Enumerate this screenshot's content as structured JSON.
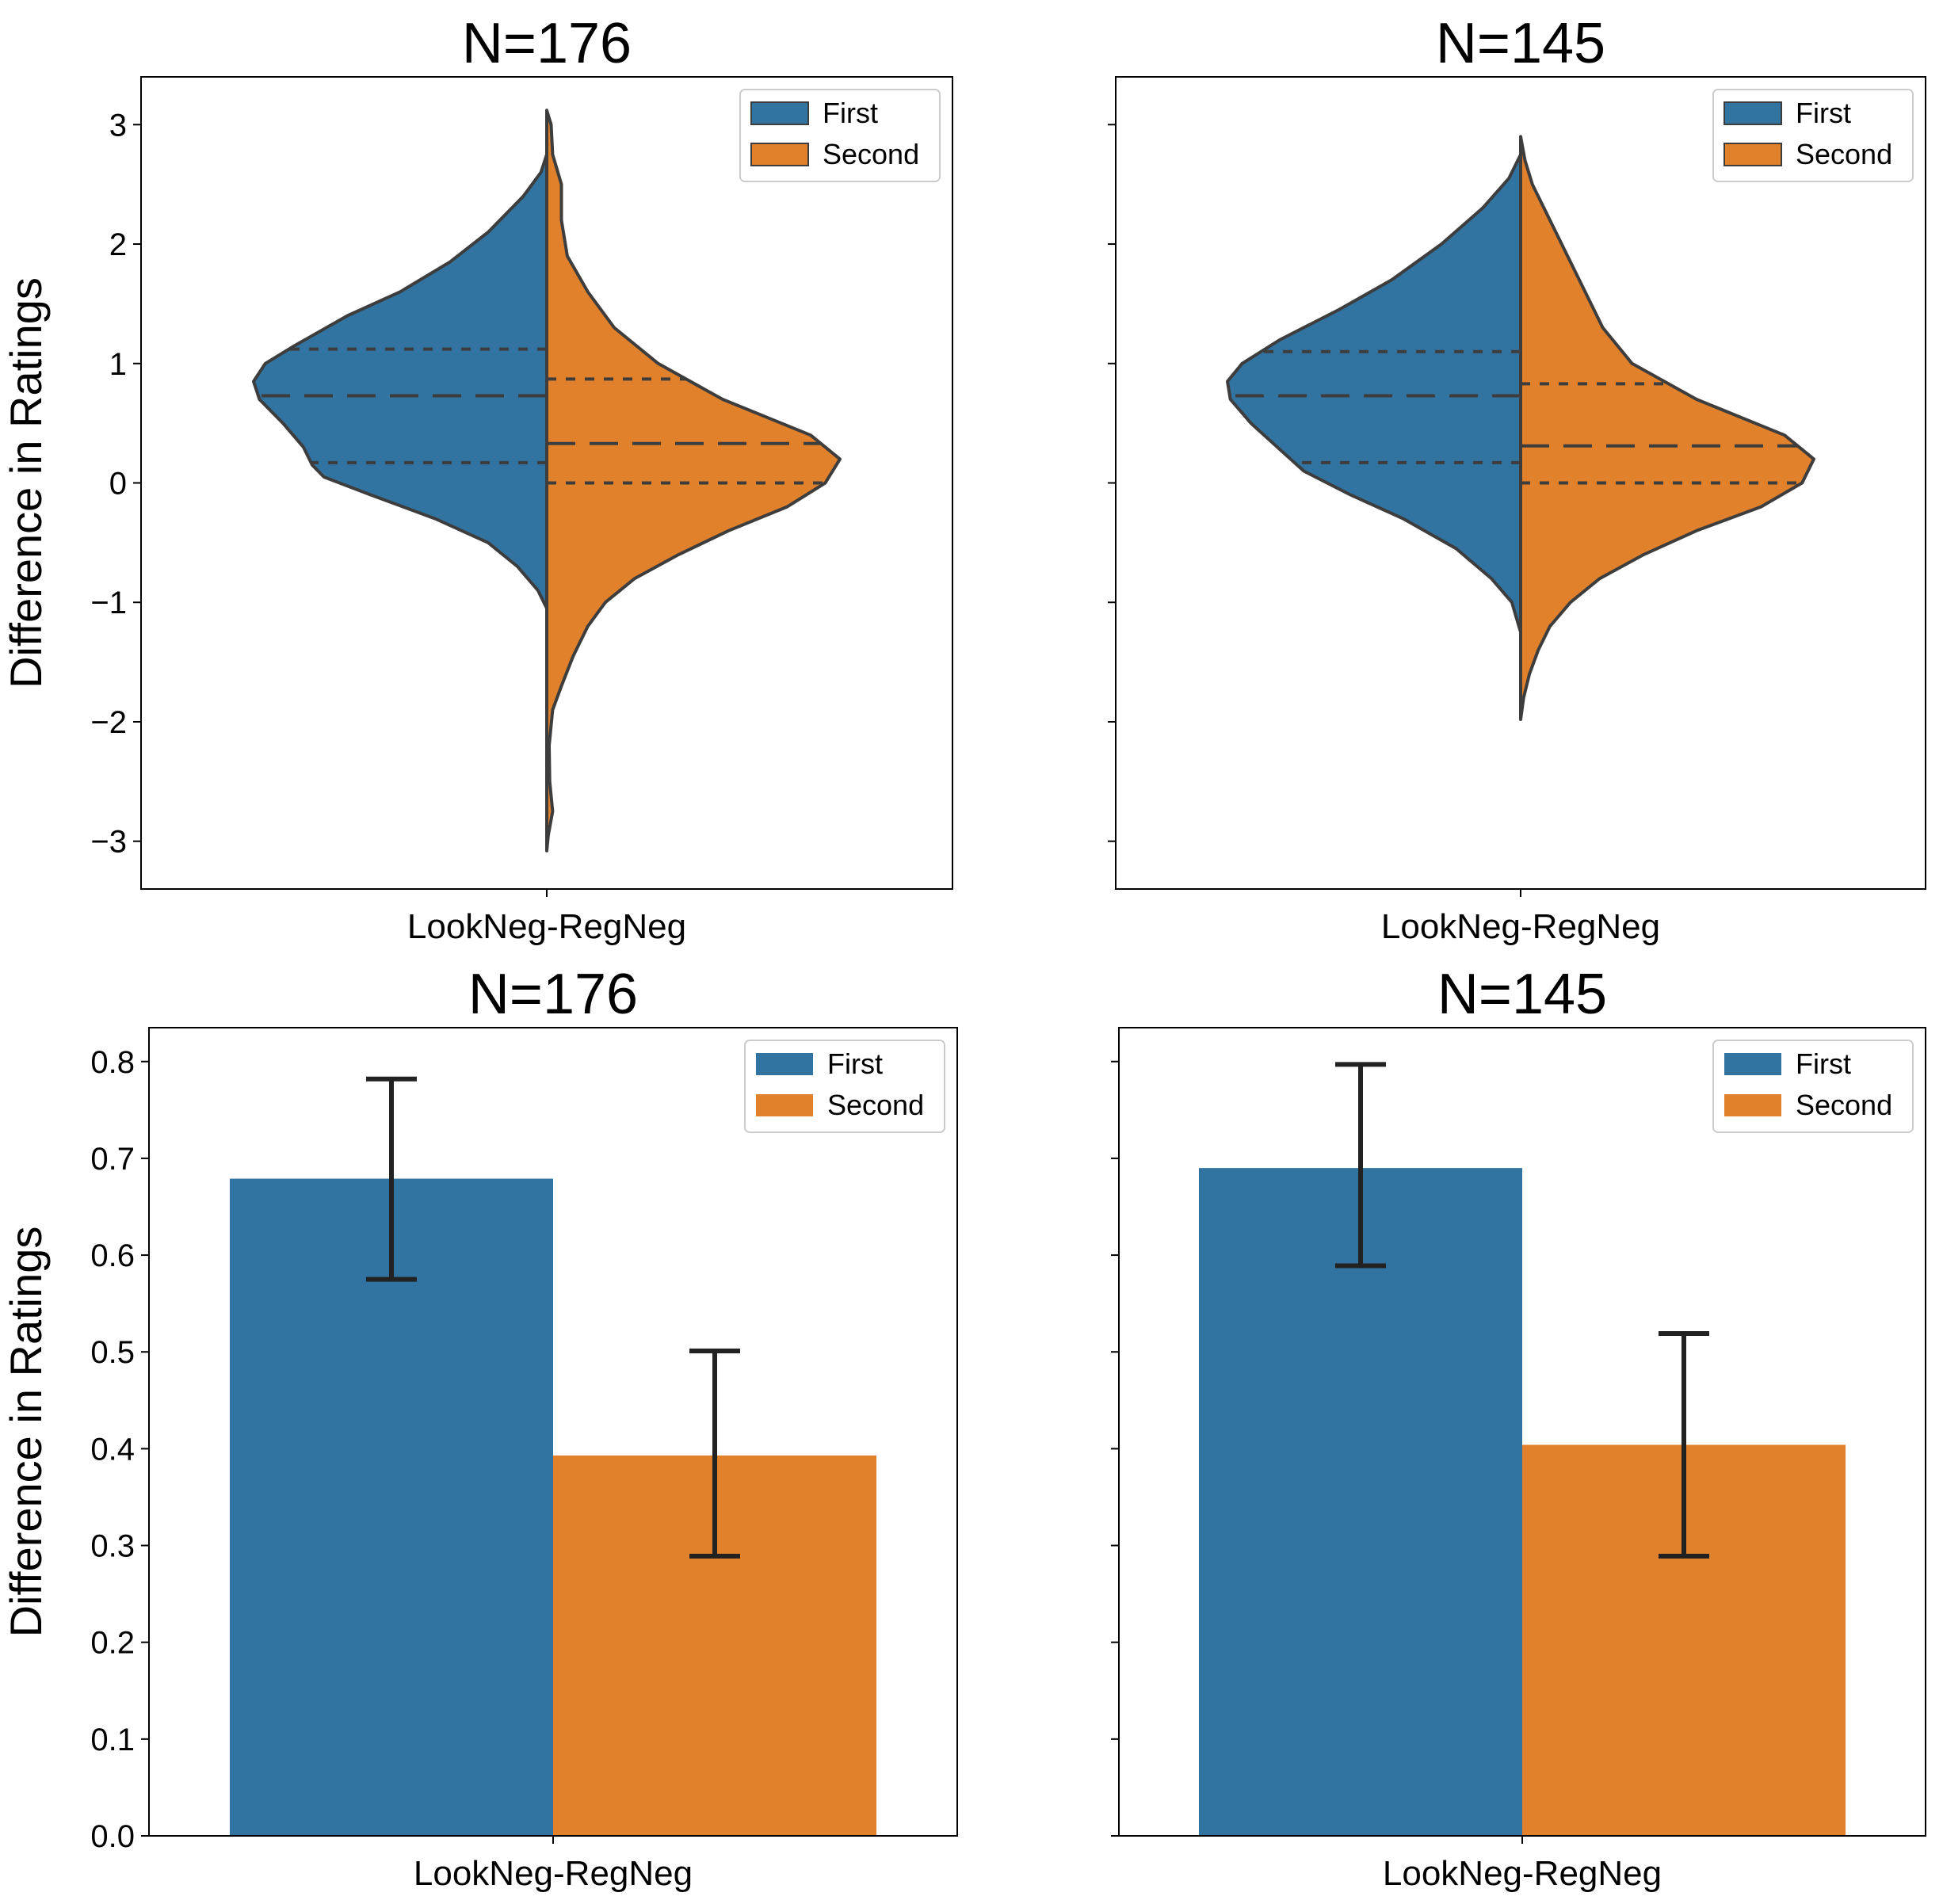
{
  "chart_data": [
    {
      "type": "violin",
      "title": "N=176",
      "xlabel": "",
      "ylabel": "Difference in Ratings",
      "categories": [
        "LookNeg-RegNeg"
      ],
      "ylim": [
        -3.4,
        3.4
      ],
      "yticks": [
        -3,
        -2,
        -1,
        0,
        1,
        2,
        3
      ],
      "ytick_labels": [
        "−3",
        "−2",
        "−1",
        "0",
        "1",
        "2",
        "3"
      ],
      "legend": {
        "position": "top-right",
        "entries": [
          "First",
          "Second"
        ]
      },
      "series": [
        {
          "name": "First",
          "color": "#3274a1",
          "quartiles": {
            "q1": 0.17,
            "median": 0.73,
            "q3": 1.12
          },
          "range": [
            -1.05,
            2.75
          ],
          "density": [
            [
              -1.05,
              0
            ],
            [
              -0.9,
              0.03
            ],
            [
              -0.7,
              0.1
            ],
            [
              -0.5,
              0.2
            ],
            [
              -0.3,
              0.38
            ],
            [
              -0.1,
              0.6
            ],
            [
              0.05,
              0.76
            ],
            [
              0.15,
              0.8
            ],
            [
              0.3,
              0.83
            ],
            [
              0.5,
              0.9
            ],
            [
              0.7,
              0.98
            ],
            [
              0.85,
              1.0
            ],
            [
              1.0,
              0.96
            ],
            [
              1.15,
              0.86
            ],
            [
              1.4,
              0.68
            ],
            [
              1.6,
              0.5
            ],
            [
              1.85,
              0.33
            ],
            [
              2.1,
              0.2
            ],
            [
              2.4,
              0.08
            ],
            [
              2.6,
              0.02
            ],
            [
              2.75,
              0
            ]
          ]
        },
        {
          "name": "Second",
          "color": "#e1812c",
          "quartiles": {
            "q1": 0.0,
            "median": 0.33,
            "q3": 0.87
          },
          "range": [
            -3.08,
            3.12
          ],
          "density": [
            [
              -3.08,
              0
            ],
            [
              -2.95,
              0.005
            ],
            [
              -2.75,
              0.02
            ],
            [
              -2.5,
              0.01
            ],
            [
              -2.2,
              0.008
            ],
            [
              -1.9,
              0.02
            ],
            [
              -1.7,
              0.05
            ],
            [
              -1.45,
              0.09
            ],
            [
              -1.2,
              0.14
            ],
            [
              -1.0,
              0.2
            ],
            [
              -0.8,
              0.3
            ],
            [
              -0.6,
              0.45
            ],
            [
              -0.4,
              0.62
            ],
            [
              -0.2,
              0.82
            ],
            [
              0.0,
              0.95
            ],
            [
              0.2,
              1.0
            ],
            [
              0.4,
              0.9
            ],
            [
              0.7,
              0.6
            ],
            [
              1.0,
              0.38
            ],
            [
              1.3,
              0.23
            ],
            [
              1.6,
              0.14
            ],
            [
              1.9,
              0.07
            ],
            [
              2.2,
              0.05
            ],
            [
              2.5,
              0.05
            ],
            [
              2.75,
              0.02
            ],
            [
              3.0,
              0.015
            ],
            [
              3.12,
              0
            ]
          ]
        }
      ]
    },
    {
      "type": "violin",
      "title": "N=145",
      "xlabel": "",
      "ylabel": "",
      "categories": [
        "LookNeg-RegNeg"
      ],
      "ylim": [
        -3.4,
        3.4
      ],
      "yticks": [
        -3,
        -2,
        -1,
        0,
        1,
        2,
        3
      ],
      "legend": {
        "position": "top-right",
        "entries": [
          "First",
          "Second"
        ]
      },
      "series": [
        {
          "name": "First",
          "color": "#3274a1",
          "quartiles": {
            "q1": 0.17,
            "median": 0.73,
            "q3": 1.1
          },
          "range": [
            -1.25,
            2.75
          ],
          "density": [
            [
              -1.25,
              0
            ],
            [
              -1.0,
              0.03
            ],
            [
              -0.8,
              0.1
            ],
            [
              -0.55,
              0.22
            ],
            [
              -0.3,
              0.4
            ],
            [
              -0.1,
              0.58
            ],
            [
              0.1,
              0.74
            ],
            [
              0.3,
              0.83
            ],
            [
              0.5,
              0.92
            ],
            [
              0.7,
              0.99
            ],
            [
              0.85,
              1.0
            ],
            [
              1.0,
              0.95
            ],
            [
              1.2,
              0.82
            ],
            [
              1.45,
              0.62
            ],
            [
              1.7,
              0.44
            ],
            [
              2.0,
              0.27
            ],
            [
              2.3,
              0.13
            ],
            [
              2.55,
              0.04
            ],
            [
              2.75,
              0
            ]
          ]
        },
        {
          "name": "Second",
          "color": "#e1812c",
          "quartiles": {
            "q1": 0.0,
            "median": 0.31,
            "q3": 0.83
          },
          "range": [
            -1.98,
            2.9
          ],
          "density": [
            [
              -1.98,
              0
            ],
            [
              -1.8,
              0.01
            ],
            [
              -1.6,
              0.03
            ],
            [
              -1.4,
              0.06
            ],
            [
              -1.2,
              0.1
            ],
            [
              -1.0,
              0.17
            ],
            [
              -0.8,
              0.27
            ],
            [
              -0.6,
              0.42
            ],
            [
              -0.4,
              0.6
            ],
            [
              -0.2,
              0.82
            ],
            [
              0.0,
              0.96
            ],
            [
              0.2,
              1.0
            ],
            [
              0.4,
              0.9
            ],
            [
              0.7,
              0.6
            ],
            [
              1.0,
              0.38
            ],
            [
              1.3,
              0.28
            ],
            [
              1.6,
              0.22
            ],
            [
              1.9,
              0.16
            ],
            [
              2.2,
              0.1
            ],
            [
              2.5,
              0.04
            ],
            [
              2.7,
              0.015
            ],
            [
              2.9,
              0
            ]
          ]
        }
      ]
    },
    {
      "type": "bar",
      "title": "N=176",
      "xlabel": "",
      "ylabel": "Difference in Ratings",
      "categories": [
        "LookNeg-RegNeg"
      ],
      "ylim": [
        0.0,
        0.835
      ],
      "yticks": [
        0.0,
        0.1,
        0.2,
        0.3,
        0.4,
        0.5,
        0.6,
        0.7,
        0.8
      ],
      "ytick_labels": [
        "0.0",
        "0.1",
        "0.2",
        "0.3",
        "0.4",
        "0.5",
        "0.6",
        "0.7",
        "0.8"
      ],
      "legend": {
        "position": "top-right",
        "entries": [
          "First",
          "Second"
        ]
      },
      "series": [
        {
          "name": "First",
          "color": "#3274a1",
          "values": [
            0.679
          ],
          "ci": [
            [
              0.575,
              0.782
            ]
          ]
        },
        {
          "name": "Second",
          "color": "#e1812c",
          "values": [
            0.393
          ],
          "ci": [
            [
              0.289,
              0.501
            ]
          ]
        }
      ]
    },
    {
      "type": "bar",
      "title": "N=145",
      "xlabel": "",
      "ylabel": "",
      "categories": [
        "LookNeg-RegNeg"
      ],
      "ylim": [
        0.0,
        0.835
      ],
      "yticks": [
        0.0,
        0.1,
        0.2,
        0.3,
        0.4,
        0.5,
        0.6,
        0.7,
        0.8
      ],
      "legend": {
        "position": "top-right",
        "entries": [
          "First",
          "Second"
        ]
      },
      "series": [
        {
          "name": "First",
          "color": "#3274a1",
          "values": [
            0.69
          ],
          "ci": [
            [
              0.589,
              0.797
            ]
          ]
        },
        {
          "name": "Second",
          "color": "#e1812c",
          "values": [
            0.404
          ],
          "ci": [
            [
              0.289,
              0.519
            ]
          ]
        }
      ]
    }
  ]
}
